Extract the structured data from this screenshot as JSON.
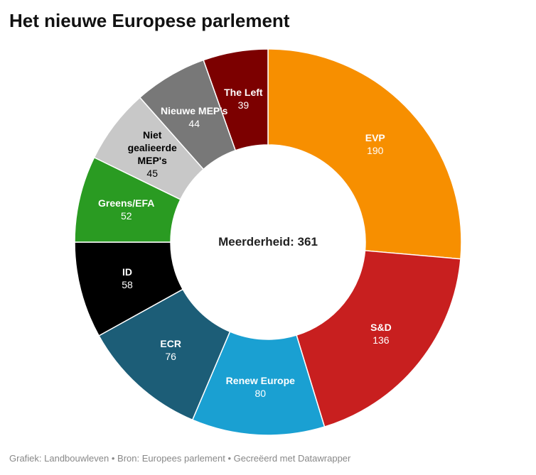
{
  "chart_data": {
    "type": "pie",
    "donut": true,
    "title": "Het nieuwe Europese parlement",
    "categories": [
      "EVP",
      "S&D",
      "Renew Europe",
      "ECR",
      "ID",
      "Greens/EFA",
      "Niet gealieerde MEP's",
      "Nieuwe MEP's",
      "The Left"
    ],
    "values": [
      190,
      136,
      80,
      76,
      58,
      52,
      45,
      44,
      39
    ],
    "colors": [
      "#f78f00",
      "#c81f1f",
      "#1aa0d2",
      "#1c5d77",
      "#000000",
      "#2a9b22",
      "#c8c8c8",
      "#787878",
      "#7c0000"
    ],
    "label_colors": [
      "#ffffff",
      "#ffffff",
      "#ffffff",
      "#ffffff",
      "#ffffff",
      "#ffffff",
      "#000000",
      "#ffffff",
      "#ffffff"
    ],
    "center_label": "Meerderheid: 361",
    "start": "top",
    "direction": "clockwise",
    "legend": "none",
    "data_labels": true
  },
  "footer": {
    "credit_label": "Grafiek:",
    "credit": "Landbouwleven",
    "separator": "•",
    "source_label": "Bron:",
    "source": "Europees parlement",
    "made_with": "Gecreëerd met Datawrapper"
  }
}
